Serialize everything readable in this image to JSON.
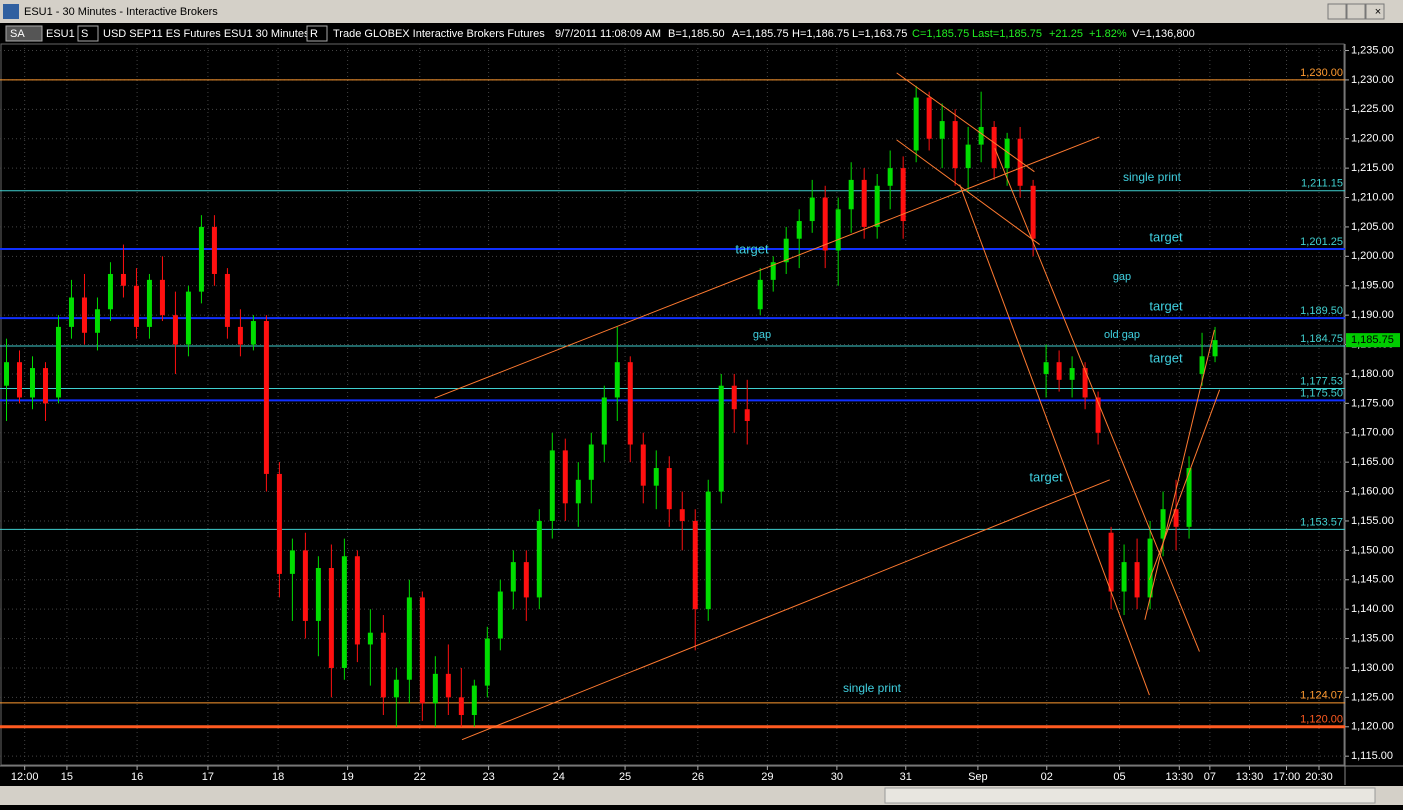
{
  "window": {
    "title": "ESU1 - 30 Minutes - Interactive Brokers"
  },
  "toolbar": {
    "account": "SA",
    "symbol": "ESU1",
    "s_button": "S",
    "contract": "USD SEP11 ES Futures ESU1  30 Minutes",
    "r_button": "R",
    "source": "Trade  GLOBEX  Interactive Brokers  Futures",
    "datetime": "9/7/2011  11:08:09 AM",
    "bid": "B=1,185.50",
    "ask": "A=1,185.75",
    "high": "H=1,186.75",
    "low": "L=1,163.75",
    "close": "C=1,185.75",
    "last": "Last=1,185.75",
    "change": "+21.25",
    "change_pct": "+1.82%",
    "volume": "V=1,136,800"
  },
  "chart_data": {
    "type": "candlestick",
    "grid": true,
    "xlim": [
      0,
      207
    ],
    "ylim": [
      1113.5,
      1239
    ],
    "xticks": [
      {
        "value": 3.8,
        "label": "12:00"
      },
      {
        "value": 10.3,
        "label": "15"
      },
      {
        "value": 21.1,
        "label": "16"
      },
      {
        "value": 32,
        "label": "17"
      },
      {
        "value": 42.8,
        "label": "18"
      },
      {
        "value": 53.5,
        "label": "19"
      },
      {
        "value": 64.6,
        "label": "22"
      },
      {
        "value": 75.2,
        "label": "23"
      },
      {
        "value": 86,
        "label": "24"
      },
      {
        "value": 96.2,
        "label": "25"
      },
      {
        "value": 107.4,
        "label": "26"
      },
      {
        "value": 118.1,
        "label": "29"
      },
      {
        "value": 128.8,
        "label": "30"
      },
      {
        "value": 139.4,
        "label": "31"
      },
      {
        "value": 150.5,
        "label": "Sep"
      },
      {
        "value": 161.1,
        "label": "02"
      },
      {
        "value": 172.3,
        "label": "05"
      },
      {
        "value": 181.5,
        "label": "13:30"
      },
      {
        "value": 186.2,
        "label": "07"
      },
      {
        "value": 192.3,
        "label": "13:30"
      },
      {
        "value": 198,
        "label": "17:00"
      },
      {
        "value": 203,
        "label": "20:30"
      }
    ],
    "yticks": [
      {
        "value": 1115,
        "label": "1,115.00"
      },
      {
        "value": 1120,
        "label": "1,120.00"
      },
      {
        "value": 1125,
        "label": "1,125.00"
      },
      {
        "value": 1130,
        "label": "1,130.00"
      },
      {
        "value": 1135,
        "label": "1,135.00"
      },
      {
        "value": 1140,
        "label": "1,140.00"
      },
      {
        "value": 1145,
        "label": "1,145.00"
      },
      {
        "value": 1150,
        "label": "1,150.00"
      },
      {
        "value": 1155,
        "label": "1,155.00"
      },
      {
        "value": 1160,
        "label": "1,160.00"
      },
      {
        "value": 1165,
        "label": "1,165.00"
      },
      {
        "value": 1170,
        "label": "1,170.00"
      },
      {
        "value": 1175,
        "label": "1,175.00"
      },
      {
        "value": 1180,
        "label": "1,180.00"
      },
      {
        "value": 1185,
        "label": "1,185.00"
      },
      {
        "value": 1190,
        "label": "1,190.00"
      },
      {
        "value": 1195,
        "label": "1,195.00"
      },
      {
        "value": 1200,
        "label": "1,200.00"
      },
      {
        "value": 1205,
        "label": "1,205.00"
      },
      {
        "value": 1210,
        "label": "1,210.00"
      },
      {
        "value": 1215,
        "label": "1,215.00"
      },
      {
        "value": 1220,
        "label": "1,220.00"
      },
      {
        "value": 1225,
        "label": "1,225.00"
      },
      {
        "value": 1230,
        "label": "1,230.00"
      },
      {
        "value": 1235,
        "label": "1,235.00"
      }
    ],
    "up_color": "#00dd00",
    "down_color": "#ff1010",
    "last": {
      "value": 1185.75,
      "label": "1,185.75"
    },
    "x": [
      1,
      3,
      5,
      7,
      9,
      11,
      13,
      15,
      17,
      19,
      21,
      23,
      25,
      27,
      29,
      31,
      33,
      35,
      37,
      39,
      41,
      43,
      45,
      47,
      49,
      51,
      53,
      55,
      57,
      59,
      61,
      63,
      65,
      67,
      69,
      71,
      73,
      75,
      77,
      79,
      81,
      83,
      85,
      87,
      89,
      91,
      93,
      95,
      97,
      99,
      101,
      103,
      105,
      107,
      109,
      111,
      113,
      115,
      117,
      119,
      121,
      123,
      125,
      127,
      129,
      131,
      133,
      135,
      137,
      139,
      141,
      143,
      145,
      147,
      149,
      151,
      153,
      155,
      157,
      159,
      161,
      163,
      165,
      167,
      169,
      171,
      173,
      175,
      177,
      179,
      181,
      183,
      185,
      187
    ],
    "open": [
      1178,
      1182,
      1176,
      1181,
      1176,
      1188,
      1193,
      1187,
      1191,
      1197,
      1195,
      1188,
      1196,
      1190,
      1185,
      1194,
      1205,
      1197,
      1188,
      1185,
      1189,
      1163,
      1146,
      1150,
      1138,
      1147,
      1130,
      1149,
      1134,
      1136,
      1125,
      1128,
      1142,
      1124,
      1129,
      1125,
      1122,
      1127,
      1135,
      1143,
      1148,
      1142,
      1155,
      1167,
      1158,
      1162,
      1168,
      1176,
      1182,
      1168,
      1161,
      1164,
      1157,
      1155,
      1140,
      1160,
      1178,
      1174,
      1191,
      1196,
      1199,
      1203,
      1206,
      1210,
      1201,
      1208,
      1213,
      1205,
      1212,
      1215,
      1218,
      1227,
      1220,
      1223,
      1215,
      1219,
      1222,
      1215,
      1220,
      1212,
      1180,
      1182,
      1179,
      1181,
      1176,
      1153,
      1143,
      1148,
      1142,
      1152,
      1157,
      1154,
      1180,
      1183
    ],
    "high": [
      1186,
      1184,
      1183,
      1182,
      1190,
      1196,
      1197,
      1193,
      1199,
      1202,
      1198,
      1197,
      1200,
      1194,
      1195,
      1207,
      1207,
      1198,
      1191,
      1190,
      1190,
      1165,
      1152,
      1153,
      1149,
      1151,
      1152,
      1150,
      1140,
      1139,
      1130,
      1145,
      1143,
      1132,
      1134,
      1130,
      1128,
      1137,
      1145,
      1150,
      1150,
      1157,
      1170,
      1169,
      1165,
      1170,
      1178,
      1188,
      1183,
      1170,
      1167,
      1166,
      1160,
      1157,
      1162,
      1180,
      1180,
      1179,
      1198,
      1200,
      1205,
      1208,
      1213,
      1212,
      1210,
      1216,
      1215,
      1214,
      1218,
      1217,
      1229,
      1228,
      1226,
      1225,
      1222,
      1228,
      1223,
      1221,
      1222,
      1213,
      1185,
      1184,
      1183,
      1182,
      1177,
      1154,
      1151,
      1152,
      1155,
      1160,
      1162,
      1166,
      1187,
      1188
    ],
    "low": [
      1172,
      1175,
      1174,
      1172,
      1175,
      1186,
      1185,
      1184,
      1189,
      1193,
      1186,
      1186,
      1189,
      1180,
      1183,
      1192,
      1195,
      1186,
      1183,
      1184,
      1160,
      1142,
      1138,
      1135,
      1132,
      1125,
      1128,
      1131,
      1127,
      1122,
      1120,
      1124,
      1121,
      1120,
      1122,
      1120,
      1120,
      1125,
      1133,
      1140,
      1138,
      1140,
      1152,
      1155,
      1154,
      1158,
      1165,
      1172,
      1165,
      1158,
      1157,
      1154,
      1150,
      1133,
      1138,
      1158,
      1170,
      1168,
      1190,
      1194,
      1197,
      1198,
      1204,
      1198,
      1195,
      1204,
      1203,
      1203,
      1208,
      1203,
      1216,
      1218,
      1215,
      1212,
      1211,
      1216,
      1213,
      1212,
      1210,
      1200,
      1176,
      1177,
      1176,
      1174,
      1168,
      1140,
      1139,
      1140,
      1140,
      1149,
      1150,
      1152,
      1178,
      1182
    ],
    "close": [
      1182,
      1176,
      1181,
      1175,
      1188,
      1193,
      1187,
      1191,
      1197,
      1195,
      1188,
      1196,
      1190,
      1185,
      1194,
      1205,
      1197,
      1188,
      1185,
      1189,
      1163,
      1146,
      1150,
      1138,
      1147,
      1130,
      1149,
      1134,
      1136,
      1125,
      1128,
      1142,
      1124,
      1129,
      1125,
      1122,
      1127,
      1135,
      1143,
      1148,
      1142,
      1155,
      1167,
      1158,
      1162,
      1168,
      1176,
      1182,
      1168,
      1161,
      1164,
      1157,
      1155,
      1140,
      1160,
      1178,
      1174,
      1172,
      1196,
      1199,
      1203,
      1206,
      1210,
      1201,
      1208,
      1213,
      1205,
      1212,
      1215,
      1206,
      1227,
      1220,
      1223,
      1215,
      1219,
      1222,
      1215,
      1220,
      1212,
      1203,
      1182,
      1179,
      1181,
      1176,
      1170,
      1143,
      1148,
      1142,
      1152,
      1157,
      1154,
      1164,
      1183,
      1185.75
    ],
    "levels": [
      {
        "value": 1230,
        "label": "1,230.00",
        "color": "#ff9a30",
        "width": 1
      },
      {
        "value": 1211.15,
        "label": "1,211.15",
        "color": "#40d0d0",
        "width": 1
      },
      {
        "value": 1201.25,
        "label": "1,201.25",
        "color": "#1030ff",
        "width": 2
      },
      {
        "value": 1189.5,
        "label": "1,189.50",
        "color": "#1030ff",
        "width": 2
      },
      {
        "value": 1184.75,
        "label": "1,184.75",
        "color": "#40d0d0",
        "width": 1
      },
      {
        "value": 1177.53,
        "label": "1,177.53",
        "color": "#40d0d0",
        "width": 1
      },
      {
        "value": 1175.5,
        "label": "1,175.50",
        "color": "#1030ff",
        "width": 2
      },
      {
        "value": 1153.57,
        "label": "1,153.57",
        "color": "#40d0d0",
        "width": 1
      },
      {
        "value": 1124.07,
        "label": "1,124.07",
        "color": "#ff9a30",
        "width": 1
      },
      {
        "value": 1120,
        "label": "1,120.00",
        "color": "#ff5a20",
        "width": 3
      }
    ],
    "trendlines": [
      {
        "x": [
          66.9,
          169.2
        ],
        "y": [
          1175.9,
          1220.3
        ]
      },
      {
        "x": [
          71.1,
          170.8
        ],
        "y": [
          1117.8,
          1162.0
        ]
      },
      {
        "x": [
          138,
          159.2
        ],
        "y": [
          1231.2,
          1214.4
        ]
      },
      {
        "x": [
          138,
          160
        ],
        "y": [
          1219.8,
          1202
        ]
      },
      {
        "x": [
          147.7,
          176.9
        ],
        "y": [
          1212.2,
          1125.4
        ]
      },
      {
        "x": [
          153.1,
          184.6
        ],
        "y": [
          1218.4,
          1132.8
        ]
      },
      {
        "x": [
          176.2,
          186.9
        ],
        "y": [
          1138.2,
          1187.5
        ]
      },
      {
        "x": [
          176.9,
          187.7
        ],
        "y": [
          1145,
          1177.3
        ]
      }
    ],
    "trendline_color": "#ff7a30",
    "annotations": [
      "target",
      "gap",
      "single print",
      "target",
      "gap",
      "target",
      "old gap",
      "target",
      "target",
      "single print"
    ]
  }
}
